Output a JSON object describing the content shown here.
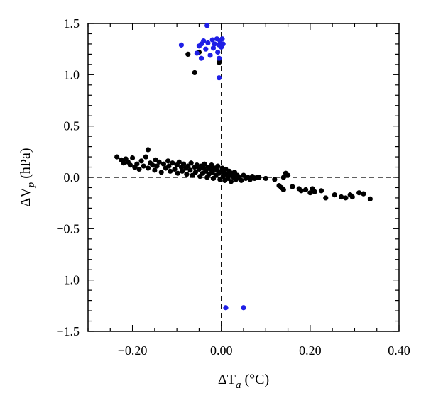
{
  "chart_data": {
    "type": "scatter",
    "title": "",
    "xlabel": {
      "main": "ΔT",
      "sub": "a",
      "unit": " (°C)"
    },
    "ylabel": {
      "main": "ΔV",
      "sub": "p",
      "unit": " (hPa)"
    },
    "xlim": [
      -0.3,
      0.4
    ],
    "ylim": [
      -1.5,
      1.5
    ],
    "x_tick_labels": [
      {
        "value": -0.2,
        "label": "−0.20"
      },
      {
        "value": 0.0,
        "label": "0.00"
      },
      {
        "value": 0.2,
        "label": "0.20"
      },
      {
        "value": 0.4,
        "label": "0.40"
      }
    ],
    "y_tick_labels": [
      {
        "value": 1.5,
        "label": "1.5"
      },
      {
        "value": 1.0,
        "label": "1.0"
      },
      {
        "value": 0.5,
        "label": "0.5"
      },
      {
        "value": 0.0,
        "label": "0.0"
      },
      {
        "value": -0.5,
        "label": "−0.5"
      },
      {
        "value": -1.0,
        "label": "−1.0"
      },
      {
        "value": -1.5,
        "label": "−1.5"
      }
    ],
    "x_minor_step": 0.05,
    "y_minor_step": 0.1,
    "reference_lines": {
      "x": 0,
      "y": 0,
      "style": "dashed"
    },
    "grid": false,
    "series": [
      {
        "color": "#000000",
        "points": [
          [
            -0.235,
            0.2
          ],
          [
            -0.225,
            0.17
          ],
          [
            -0.22,
            0.14
          ],
          [
            -0.215,
            0.18
          ],
          [
            -0.21,
            0.15
          ],
          [
            -0.205,
            0.12
          ],
          [
            -0.2,
            0.19
          ],
          [
            -0.195,
            0.1
          ],
          [
            -0.19,
            0.13
          ],
          [
            -0.185,
            0.08
          ],
          [
            -0.18,
            0.16
          ],
          [
            -0.175,
            0.11
          ],
          [
            -0.17,
            0.2
          ],
          [
            -0.165,
            0.27
          ],
          [
            -0.165,
            0.09
          ],
          [
            -0.16,
            0.14
          ],
          [
            -0.155,
            0.12
          ],
          [
            -0.15,
            0.07
          ],
          [
            -0.148,
            0.17
          ],
          [
            -0.145,
            0.11
          ],
          [
            -0.14,
            0.15
          ],
          [
            -0.135,
            0.05
          ],
          [
            -0.13,
            0.13
          ],
          [
            -0.125,
            0.09
          ],
          [
            -0.12,
            0.16
          ],
          [
            -0.118,
            0.11
          ],
          [
            -0.115,
            0.06
          ],
          [
            -0.11,
            0.14
          ],
          [
            -0.105,
            0.08
          ],
          [
            -0.1,
            0.12
          ],
          [
            -0.098,
            0.04
          ],
          [
            -0.095,
            0.15
          ],
          [
            -0.09,
            0.1
          ],
          [
            -0.088,
            0.06
          ],
          [
            -0.085,
            0.13
          ],
          [
            -0.08,
            0.09
          ],
          [
            -0.078,
            0.03
          ],
          [
            -0.075,
            0.11
          ],
          [
            -0.07,
            0.07
          ],
          [
            -0.068,
            0.14
          ],
          [
            -0.065,
            0.02
          ],
          [
            -0.06,
            0.1
          ],
          [
            -0.058,
            0.05
          ],
          [
            -0.055,
            0.12
          ],
          [
            -0.05,
            0.08
          ],
          [
            -0.048,
            0.01
          ],
          [
            -0.045,
            0.11
          ],
          [
            -0.042,
            0.04
          ],
          [
            -0.04,
            0.09
          ],
          [
            -0.038,
            0.13
          ],
          [
            -0.035,
            0.06
          ],
          [
            -0.032,
            0.0
          ],
          [
            -0.03,
            0.1
          ],
          [
            -0.028,
            0.03
          ],
          [
            -0.025,
            0.08
          ],
          [
            -0.022,
            0.12
          ],
          [
            -0.02,
            0.05
          ],
          [
            -0.018,
            -0.01
          ],
          [
            -0.015,
            0.09
          ],
          [
            -0.012,
            0.02
          ],
          [
            -0.01,
            0.07
          ],
          [
            -0.008,
            0.11
          ],
          [
            -0.005,
            0.04
          ],
          [
            -0.003,
            -0.02
          ],
          [
            0.0,
            0.06
          ],
          [
            0.002,
            0.09
          ],
          [
            0.004,
            0.01
          ],
          [
            0.006,
            0.05
          ],
          [
            0.008,
            -0.03
          ],
          [
            0.01,
            0.08
          ],
          [
            0.012,
            0.03
          ],
          [
            0.015,
            -0.01
          ],
          [
            0.018,
            0.06
          ],
          [
            0.02,
            0.02
          ],
          [
            0.022,
            -0.04
          ],
          [
            0.025,
            0.04
          ],
          [
            0.028,
            0.0
          ],
          [
            0.03,
            0.05
          ],
          [
            0.033,
            -0.02
          ],
          [
            0.036,
            0.02
          ],
          [
            0.04,
            0.0
          ],
          [
            0.045,
            -0.03
          ],
          [
            0.05,
            0.02
          ],
          [
            0.055,
            -0.01
          ],
          [
            0.06,
            0.0
          ],
          [
            0.065,
            -0.02
          ],
          [
            0.07,
            0.01
          ],
          [
            0.075,
            -0.01
          ],
          [
            0.08,
            0.0
          ],
          [
            0.085,
            0.0
          ],
          [
            0.1,
            -0.01
          ],
          [
            0.12,
            -0.02
          ],
          [
            0.14,
            0.0
          ],
          [
            0.145,
            0.04
          ],
          [
            0.15,
            0.02
          ],
          [
            0.13,
            -0.08
          ],
          [
            0.135,
            -0.1
          ],
          [
            0.14,
            -0.12
          ],
          [
            0.16,
            -0.09
          ],
          [
            0.175,
            -0.11
          ],
          [
            0.18,
            -0.13
          ],
          [
            0.19,
            -0.12
          ],
          [
            0.2,
            -0.15
          ],
          [
            0.205,
            -0.11
          ],
          [
            0.21,
            -0.14
          ],
          [
            0.225,
            -0.13
          ],
          [
            0.235,
            -0.2
          ],
          [
            0.255,
            -0.17
          ],
          [
            0.27,
            -0.19
          ],
          [
            0.28,
            -0.2
          ],
          [
            0.29,
            -0.17
          ],
          [
            0.295,
            -0.19
          ],
          [
            0.31,
            -0.15
          ],
          [
            0.32,
            -0.16
          ],
          [
            0.335,
            -0.21
          ],
          [
            -0.075,
            1.2
          ],
          [
            -0.06,
            1.02
          ],
          [
            -0.05,
            1.22
          ],
          [
            -0.005,
            1.12
          ]
        ]
      },
      {
        "color": "#1f1fe6",
        "points": [
          [
            -0.09,
            1.29
          ],
          [
            -0.055,
            1.21
          ],
          [
            -0.05,
            1.28
          ],
          [
            -0.045,
            1.3
          ],
          [
            -0.04,
            1.33
          ],
          [
            -0.035,
            1.25
          ],
          [
            -0.032,
            1.48
          ],
          [
            -0.03,
            1.31
          ],
          [
            -0.025,
            1.19
          ],
          [
            -0.02,
            1.34
          ],
          [
            -0.018,
            1.26
          ],
          [
            -0.015,
            1.3
          ],
          [
            -0.01,
            1.35
          ],
          [
            -0.008,
            1.22
          ],
          [
            -0.005,
            1.29
          ],
          [
            -0.003,
            1.33
          ],
          [
            0.0,
            1.27
          ],
          [
            0.002,
            1.35
          ],
          [
            0.004,
            1.3
          ],
          [
            -0.005,
            1.16
          ],
          [
            -0.005,
            0.97
          ],
          [
            -0.045,
            1.16
          ],
          [
            0.01,
            -1.27
          ],
          [
            0.05,
            -1.27
          ]
        ]
      }
    ]
  }
}
